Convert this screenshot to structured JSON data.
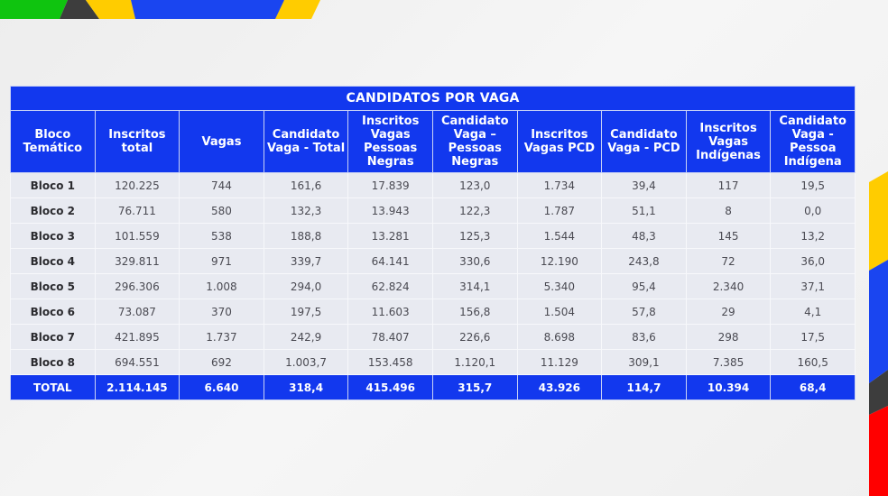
{
  "colors": {
    "header_blue": "#1238ee",
    "cell_bg": "#e8eaf1",
    "band_green": "#0fc40f",
    "band_dark": "#3d3d3d",
    "band_yellow": "#ffcc00",
    "band_blue": "#1a45f0",
    "band_red": "#ff0000"
  },
  "table": {
    "title": "CANDIDATOS POR VAGA",
    "headers": [
      "Bloco Temático",
      "Inscritos total",
      "Vagas",
      "Candidato Vaga - Total",
      "Inscritos Vagas Pessoas Negras",
      "Candidato Vaga – Pessoas Negras",
      "Inscritos Vagas PCD",
      "Candidato Vaga - PCD",
      "Inscritos Vagas Indígenas",
      "Candidato Vaga - Pessoa Indígena"
    ],
    "rows": [
      [
        "Bloco 1",
        "120.225",
        "744",
        "161,6",
        "17.839",
        "123,0",
        "1.734",
        "39,4",
        "117",
        "19,5"
      ],
      [
        "Bloco 2",
        "76.711",
        "580",
        "132,3",
        "13.943",
        "122,3",
        "1.787",
        "51,1",
        "8",
        "0,0"
      ],
      [
        "Bloco 3",
        "101.559",
        "538",
        "188,8",
        "13.281",
        "125,3",
        "1.544",
        "48,3",
        "145",
        "13,2"
      ],
      [
        "Bloco 4",
        "329.811",
        "971",
        "339,7",
        "64.141",
        "330,6",
        "12.190",
        "243,8",
        "72",
        "36,0"
      ],
      [
        "Bloco 5",
        "296.306",
        "1.008",
        "294,0",
        "62.824",
        "314,1",
        "5.340",
        "95,4",
        "2.340",
        "37,1"
      ],
      [
        "Bloco 6",
        "73.087",
        "370",
        "197,5",
        "11.603",
        "156,8",
        "1.504",
        "57,8",
        "29",
        "4,1"
      ],
      [
        "Bloco 7",
        "421.895",
        "1.737",
        "242,9",
        "78.407",
        "226,6",
        "8.698",
        "83,6",
        "298",
        "17,5"
      ],
      [
        "Bloco 8",
        "694.551",
        "692",
        "1.003,7",
        "153.458",
        "1.120,1",
        "11.129",
        "309,1",
        "7.385",
        "160,5"
      ]
    ],
    "total": [
      "TOTAL",
      "2.114.145",
      "6.640",
      "318,4",
      "415.496",
      "315,7",
      "43.926",
      "114,7",
      "10.394",
      "68,4"
    ]
  }
}
